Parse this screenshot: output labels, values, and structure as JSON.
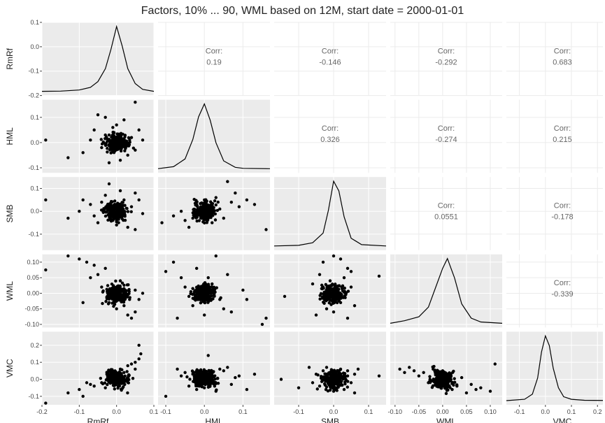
{
  "chart_data": {
    "type": "scatter",
    "title": "Factors, 10% ... 90, WML based on 12M, start date = 2000-01-01",
    "variables": [
      "RmRf",
      "HML",
      "SMB",
      "WML",
      "VMC"
    ],
    "layout": "pairs-matrix: lower=scatter, diagonal=density, upper=correlation",
    "colors": {
      "panel_bg": "#ebebeb",
      "grid": "#ffffff",
      "points": "#000000",
      "corr_text": "#666666"
    },
    "axis_ranges": {
      "RmRf": [
        -0.2,
        0.1
      ],
      "HML": [
        -0.12,
        0.17
      ],
      "SMB": [
        -0.17,
        0.15
      ],
      "WML": [
        -0.11,
        0.125
      ],
      "VMC": [
        -0.15,
        0.28
      ]
    },
    "ticks": {
      "RmRf": [
        -0.2,
        -0.1,
        0.0,
        0.1
      ],
      "HML": [
        -0.1,
        0.0,
        0.1
      ],
      "SMB": [
        -0.1,
        0.0,
        0.1
      ],
      "WML": [
        -0.1,
        -0.05,
        0.0,
        0.05,
        0.1
      ],
      "VMC": [
        -0.1,
        0.0,
        0.1,
        0.2
      ]
    },
    "tick_labels": {
      "RmRf": [
        "-0.2",
        "-0.1",
        "0.0",
        "0.1"
      ],
      "HML": [
        "-0.1",
        "0.0",
        "0.1"
      ],
      "SMB": [
        "-0.1",
        "0.0",
        "0.1"
      ],
      "WML": [
        "-0.10",
        "-0.05",
        "0.00",
        "0.05",
        "0.10"
      ],
      "VMC": [
        "-0.1",
        "0.0",
        "0.1",
        "0.2"
      ]
    },
    "correlation_label": "Corr:",
    "correlations": [
      {
        "row": "RmRf",
        "col": "HML",
        "value": "0.19"
      },
      {
        "row": "RmRf",
        "col": "SMB",
        "value": "-0.146"
      },
      {
        "row": "RmRf",
        "col": "WML",
        "value": "-0.292"
      },
      {
        "row": "RmRf",
        "col": "VMC",
        "value": "0.683"
      },
      {
        "row": "HML",
        "col": "SMB",
        "value": "0.326"
      },
      {
        "row": "HML",
        "col": "WML",
        "value": "-0.274"
      },
      {
        "row": "HML",
        "col": "VMC",
        "value": "0.215"
      },
      {
        "row": "SMB",
        "col": "WML",
        "value": "0.0551"
      },
      {
        "row": "SMB",
        "col": "VMC",
        "value": "-0.178"
      },
      {
        "row": "WML",
        "col": "VMC",
        "value": "-0.339"
      }
    ],
    "scatter_points": {
      "HML_vs_RmRf": [
        [
          -0.19,
          0.01
        ],
        [
          0.05,
          0.16
        ],
        [
          -0.13,
          -0.06
        ],
        [
          -0.09,
          -0.04
        ],
        [
          -0.05,
          0.11
        ],
        [
          -0.03,
          0.1
        ],
        [
          0.04,
          0.02
        ],
        [
          -0.02,
          -0.08
        ],
        [
          0.02,
          0.09
        ],
        [
          0.06,
          0.05
        ],
        [
          -0.07,
          0.01
        ],
        [
          0.03,
          -0.05
        ],
        [
          -0.01,
          0.06
        ],
        [
          0.05,
          -0.03
        ],
        [
          -0.04,
          -0.02
        ],
        [
          0.0,
          0.07
        ],
        [
          -0.06,
          0.05
        ],
        [
          0.07,
          0.01
        ],
        [
          0.01,
          -0.07
        ],
        [
          -0.03,
          0.03
        ]
      ],
      "SMB_vs_RmRf": [
        [
          -0.19,
          0.05
        ],
        [
          -0.13,
          -0.03
        ],
        [
          -0.09,
          0.05
        ],
        [
          0.05,
          -0.08
        ],
        [
          -0.02,
          0.12
        ],
        [
          0.01,
          0.09
        ],
        [
          0.06,
          0.05
        ],
        [
          -0.05,
          -0.05
        ],
        [
          0.03,
          -0.07
        ],
        [
          -0.07,
          0.03
        ],
        [
          0.04,
          0.02
        ],
        [
          -0.03,
          0.07
        ],
        [
          -0.01,
          -0.04
        ],
        [
          0.02,
          0.05
        ],
        [
          0.05,
          0.08
        ],
        [
          -0.06,
          -0.02
        ],
        [
          0.0,
          -0.06
        ],
        [
          0.07,
          -0.01
        ],
        [
          -0.1,
          0.0
        ],
        [
          -0.04,
          0.04
        ]
      ],
      "WML_vs_RmRf": [
        [
          -0.19,
          0.075
        ],
        [
          -0.13,
          0.12
        ],
        [
          -0.1,
          0.11
        ],
        [
          -0.08,
          0.1
        ],
        [
          -0.06,
          0.09
        ],
        [
          -0.09,
          -0.03
        ],
        [
          -0.05,
          0.06
        ],
        [
          0.04,
          -0.08
        ],
        [
          0.05,
          -0.06
        ],
        [
          -0.03,
          0.08
        ],
        [
          0.02,
          -0.04
        ],
        [
          0.06,
          -0.02
        ],
        [
          -0.04,
          0.02
        ],
        [
          0.01,
          0.04
        ],
        [
          0.03,
          -0.07
        ],
        [
          -0.07,
          0.05
        ],
        [
          0.0,
          -0.05
        ],
        [
          0.05,
          0.01
        ],
        [
          -0.02,
          -0.03
        ],
        [
          0.07,
          0.0
        ]
      ],
      "VMC_vs_RmRf": [
        [
          -0.19,
          -0.14
        ],
        [
          -0.13,
          -0.08
        ],
        [
          -0.09,
          -0.1
        ],
        [
          -0.1,
          -0.06
        ],
        [
          -0.06,
          -0.04
        ],
        [
          0.06,
          0.2
        ],
        [
          0.065,
          0.15
        ],
        [
          0.05,
          0.1
        ],
        [
          0.03,
          0.08
        ],
        [
          0.01,
          0.06
        ],
        [
          -0.02,
          0.0
        ],
        [
          -0.04,
          -0.02
        ],
        [
          0.02,
          0.04
        ],
        [
          0.04,
          0.09
        ],
        [
          -0.07,
          -0.03
        ],
        [
          0.0,
          0.02
        ],
        [
          -0.03,
          -0.05
        ],
        [
          0.06,
          0.12
        ],
        [
          -0.08,
          -0.02
        ],
        [
          0.05,
          0.06
        ]
      ],
      "SMB_vs_HML": [
        [
          -0.11,
          -0.05
        ],
        [
          0.16,
          -0.08
        ],
        [
          -0.05,
          -0.04
        ],
        [
          0.06,
          0.13
        ],
        [
          0.11,
          0.05
        ],
        [
          0.13,
          0.03
        ],
        [
          -0.08,
          -0.02
        ],
        [
          0.09,
          0.02
        ],
        [
          0.03,
          0.06
        ],
        [
          -0.03,
          -0.03
        ],
        [
          0.07,
          0.04
        ],
        [
          -0.06,
          0.0
        ],
        [
          0.05,
          -0.03
        ],
        [
          0.0,
          0.05
        ],
        [
          0.02,
          -0.05
        ],
        [
          -0.02,
          0.03
        ],
        [
          0.08,
          0.08
        ],
        [
          -0.04,
          -0.07
        ],
        [
          0.04,
          0.01
        ],
        [
          -0.01,
          -0.01
        ]
      ],
      "WML_vs_HML": [
        [
          -0.1,
          0.07
        ],
        [
          -0.08,
          0.1
        ],
        [
          -0.07,
          -0.08
        ],
        [
          0.03,
          0.12
        ],
        [
          0.15,
          -0.1
        ],
        [
          0.16,
          -0.08
        ],
        [
          0.11,
          -0.02
        ],
        [
          0.1,
          0.01
        ],
        [
          0.05,
          -0.05
        ],
        [
          -0.05,
          0.02
        ],
        [
          0.06,
          0.06
        ],
        [
          -0.03,
          -0.04
        ],
        [
          0.02,
          0.03
        ],
        [
          -0.06,
          0.05
        ],
        [
          0.07,
          -0.06
        ],
        [
          0.0,
          -0.07
        ],
        [
          -0.02,
          0.08
        ],
        [
          0.04,
          -0.02
        ],
        [
          -0.04,
          -0.01
        ],
        [
          0.01,
          0.05
        ]
      ],
      "VMC_vs_HML": [
        [
          -0.1,
          -0.1
        ],
        [
          -0.07,
          0.06
        ],
        [
          0.01,
          0.14
        ],
        [
          0.11,
          -0.06
        ],
        [
          0.13,
          0.03
        ],
        [
          0.05,
          0.05
        ],
        [
          -0.04,
          -0.04
        ],
        [
          0.08,
          0.01
        ],
        [
          -0.06,
          0.02
        ],
        [
          0.03,
          -0.07
        ],
        [
          0.06,
          0.07
        ],
        [
          -0.02,
          -0.06
        ],
        [
          0.02,
          0.04
        ],
        [
          -0.05,
          0.04
        ],
        [
          0.07,
          -0.03
        ],
        [
          0.0,
          -0.05
        ],
        [
          0.04,
          0.06
        ],
        [
          -0.03,
          0.03
        ],
        [
          0.09,
          0.02
        ],
        [
          -0.01,
          0.05
        ]
      ],
      "WML_vs_SMB": [
        [
          -0.14,
          -0.01
        ],
        [
          0.13,
          0.055
        ],
        [
          -0.03,
          0.1
        ],
        [
          0.0,
          0.12
        ],
        [
          0.02,
          0.11
        ],
        [
          0.05,
          0.07
        ],
        [
          -0.05,
          -0.07
        ],
        [
          0.04,
          -0.08
        ],
        [
          0.06,
          -0.04
        ],
        [
          -0.06,
          0.03
        ],
        [
          0.03,
          0.05
        ],
        [
          -0.02,
          -0.05
        ],
        [
          0.01,
          -0.02
        ],
        [
          -0.04,
          0.06
        ],
        [
          0.05,
          0.02
        ],
        [
          0.0,
          -0.06
        ],
        [
          -0.03,
          0.02
        ],
        [
          0.02,
          -0.03
        ],
        [
          0.04,
          0.08
        ],
        [
          -0.01,
          0.04
        ]
      ],
      "VMC_vs_SMB": [
        [
          -0.15,
          0.0
        ],
        [
          0.13,
          0.02
        ],
        [
          -0.1,
          -0.05
        ],
        [
          -0.07,
          0.07
        ],
        [
          0.06,
          -0.08
        ],
        [
          0.07,
          0.06
        ],
        [
          -0.04,
          -0.04
        ],
        [
          0.04,
          0.05
        ],
        [
          -0.05,
          0.03
        ],
        [
          0.03,
          -0.06
        ],
        [
          0.05,
          -0.02
        ],
        [
          -0.02,
          0.07
        ],
        [
          0.01,
          -0.05
        ],
        [
          -0.06,
          -0.02
        ],
        [
          0.02,
          0.06
        ],
        [
          0.0,
          -0.07
        ],
        [
          -0.03,
          0.05
        ],
        [
          0.04,
          0.02
        ],
        [
          -0.01,
          -0.03
        ],
        [
          0.06,
          0.03
        ]
      ],
      "VMC_vs_WML": [
        [
          -0.09,
          0.06
        ],
        [
          -0.07,
          0.07
        ],
        [
          -0.08,
          0.04
        ],
        [
          -0.06,
          0.05
        ],
        [
          0.1,
          -0.07
        ],
        [
          0.11,
          0.09
        ],
        [
          0.08,
          -0.05
        ],
        [
          0.05,
          -0.08
        ],
        [
          -0.04,
          0.04
        ],
        [
          -0.02,
          0.06
        ],
        [
          0.03,
          -0.04
        ],
        [
          0.06,
          -0.03
        ],
        [
          -0.05,
          0.02
        ],
        [
          0.0,
          0.05
        ],
        [
          0.02,
          -0.06
        ],
        [
          -0.03,
          -0.02
        ],
        [
          0.07,
          -0.06
        ],
        [
          0.04,
          0.01
        ],
        [
          -0.01,
          0.03
        ],
        [
          0.01,
          -0.02
        ]
      ]
    },
    "density_curves": {
      "RmRf": [
        [
          -0.2,
          0.0
        ],
        [
          -0.15,
          0.003
        ],
        [
          -0.1,
          0.02
        ],
        [
          -0.07,
          0.06
        ],
        [
          -0.05,
          0.15
        ],
        [
          -0.03,
          0.35
        ],
        [
          -0.015,
          0.65
        ],
        [
          0.0,
          1.0
        ],
        [
          0.015,
          0.7
        ],
        [
          0.03,
          0.35
        ],
        [
          0.05,
          0.12
        ],
        [
          0.07,
          0.03
        ],
        [
          0.1,
          0.0
        ]
      ],
      "HML": [
        [
          -0.12,
          0.0
        ],
        [
          -0.08,
          0.03
        ],
        [
          -0.05,
          0.15
        ],
        [
          -0.03,
          0.45
        ],
        [
          -0.015,
          0.8
        ],
        [
          0.0,
          1.0
        ],
        [
          0.015,
          0.75
        ],
        [
          0.03,
          0.4
        ],
        [
          0.05,
          0.12
        ],
        [
          0.08,
          0.02
        ],
        [
          0.1,
          0.005
        ],
        [
          0.17,
          0.0
        ]
      ],
      "SMB": [
        [
          -0.17,
          0.0
        ],
        [
          -0.1,
          0.01
        ],
        [
          -0.06,
          0.05
        ],
        [
          -0.03,
          0.2
        ],
        [
          -0.015,
          0.55
        ],
        [
          0.0,
          1.0
        ],
        [
          0.015,
          0.85
        ],
        [
          0.03,
          0.45
        ],
        [
          0.05,
          0.12
        ],
        [
          0.08,
          0.02
        ],
        [
          0.15,
          0.0
        ]
      ],
      "WML": [
        [
          -0.11,
          0.0
        ],
        [
          -0.08,
          0.04
        ],
        [
          -0.05,
          0.1
        ],
        [
          -0.03,
          0.25
        ],
        [
          -0.015,
          0.55
        ],
        [
          0.0,
          0.85
        ],
        [
          0.01,
          1.0
        ],
        [
          0.025,
          0.7
        ],
        [
          0.04,
          0.3
        ],
        [
          0.06,
          0.08
        ],
        [
          0.08,
          0.02
        ],
        [
          0.125,
          0.0
        ]
      ],
      "VMC": [
        [
          -0.15,
          0.0
        ],
        [
          -0.08,
          0.02
        ],
        [
          -0.05,
          0.1
        ],
        [
          -0.03,
          0.35
        ],
        [
          -0.015,
          0.75
        ],
        [
          0.0,
          1.0
        ],
        [
          0.015,
          0.85
        ],
        [
          0.03,
          0.5
        ],
        [
          0.05,
          0.2
        ],
        [
          0.07,
          0.06
        ],
        [
          0.1,
          0.02
        ],
        [
          0.15,
          0.005
        ],
        [
          0.28,
          0.0
        ]
      ]
    }
  }
}
